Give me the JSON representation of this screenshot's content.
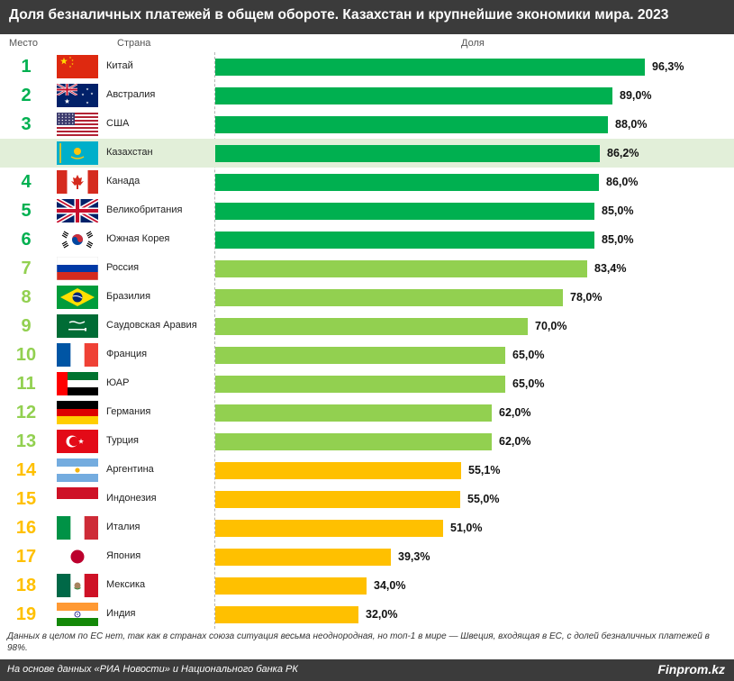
{
  "header": {
    "title": "Доля безналичных платежей в общем обороте. Казахстан и крупнейшие экономики мира. 2023",
    "col_rank": "Место",
    "col_country": "Страна",
    "col_share": "Доля"
  },
  "colors": {
    "dark_green": "#00b050",
    "light_green": "#92d050",
    "yellow": "#ffc000",
    "highlight_row": "#e2efd9",
    "header_bg": "#3b3b3b"
  },
  "chart_data": {
    "type": "bar",
    "orientation": "horizontal",
    "title": "Доля безналичных платежей в общем обороте. Казахстан и крупнейшие экономики мира. 2023",
    "xlim": [
      0,
      100
    ],
    "rows": [
      {
        "rank": "1",
        "country": "Китай",
        "value": 96.3,
        "label": "96,3%",
        "group": "dark",
        "flag": "china-flag"
      },
      {
        "rank": "2",
        "country": "Австралия",
        "value": 89.0,
        "label": "89,0%",
        "group": "dark",
        "flag": "australia-flag"
      },
      {
        "rank": "3",
        "country": "США",
        "value": 88.0,
        "label": "88,0%",
        "group": "dark",
        "flag": "usa-flag"
      },
      {
        "rank": "",
        "country": "Казахстан",
        "value": 86.2,
        "label": "86,2%",
        "group": "dark",
        "flag": "kazakhstan-flag",
        "highlight": true
      },
      {
        "rank": "4",
        "country": "Канада",
        "value": 86.0,
        "label": "86,0%",
        "group": "dark",
        "flag": "canada-flag"
      },
      {
        "rank": "5",
        "country": "Великобритания",
        "value": 85.0,
        "label": "85,0%",
        "group": "dark",
        "flag": "uk-flag"
      },
      {
        "rank": "6",
        "country": "Южная Корея",
        "value": 85.0,
        "label": "85,0%",
        "group": "dark",
        "flag": "south-korea-flag"
      },
      {
        "rank": "7",
        "country": "Россия",
        "value": 83.4,
        "label": "83,4%",
        "group": "light",
        "flag": "russia-flag"
      },
      {
        "rank": "8",
        "country": "Бразилия",
        "value": 78.0,
        "label": "78,0%",
        "group": "light",
        "flag": "brazil-flag"
      },
      {
        "rank": "9",
        "country": "Саудовская Аравия",
        "value": 70.0,
        "label": "70,0%",
        "group": "light",
        "flag": "saudi-arabia-flag"
      },
      {
        "rank": "10",
        "country": "Франция",
        "value": 65.0,
        "label": "65,0%",
        "group": "light",
        "flag": "france-flag"
      },
      {
        "rank": "11",
        "country": "ЮАР",
        "value": 65.0,
        "label": "65,0%",
        "group": "light",
        "flag": "uae-flag"
      },
      {
        "rank": "12",
        "country": "Германия",
        "value": 62.0,
        "label": "62,0%",
        "group": "light",
        "flag": "germany-flag"
      },
      {
        "rank": "13",
        "country": "Турция",
        "value": 62.0,
        "label": "62,0%",
        "group": "light",
        "flag": "turkey-flag"
      },
      {
        "rank": "14",
        "country": "Аргентина",
        "value": 55.1,
        "label": "55,1%",
        "group": "yellow",
        "flag": "argentina-flag"
      },
      {
        "rank": "15",
        "country": "Индонезия",
        "value": 55.0,
        "label": "55,0%",
        "group": "yellow",
        "flag": "indonesia-flag"
      },
      {
        "rank": "16",
        "country": "Италия",
        "value": 51.0,
        "label": "51,0%",
        "group": "yellow",
        "flag": "italy-flag"
      },
      {
        "rank": "17",
        "country": "Япония",
        "value": 39.3,
        "label": "39,3%",
        "group": "yellow",
        "flag": "japan-flag"
      },
      {
        "rank": "18",
        "country": "Мексика",
        "value": 34.0,
        "label": "34,0%",
        "group": "yellow",
        "flag": "mexico-flag"
      },
      {
        "rank": "19",
        "country": "Индия",
        "value": 32.0,
        "label": "32,0%",
        "group": "yellow",
        "flag": "india-flag"
      }
    ]
  },
  "note": "Данных в целом по ЕС нет, так как в странах союза ситуация весьма неоднородная, но топ-1 в мире — Швеция, входящая в ЕС, с долей безналичных платежей в 98%.",
  "footer": {
    "source": "На основе данных «РИА Новости» и Национального банка РК",
    "brand": "Finprom.kz"
  }
}
